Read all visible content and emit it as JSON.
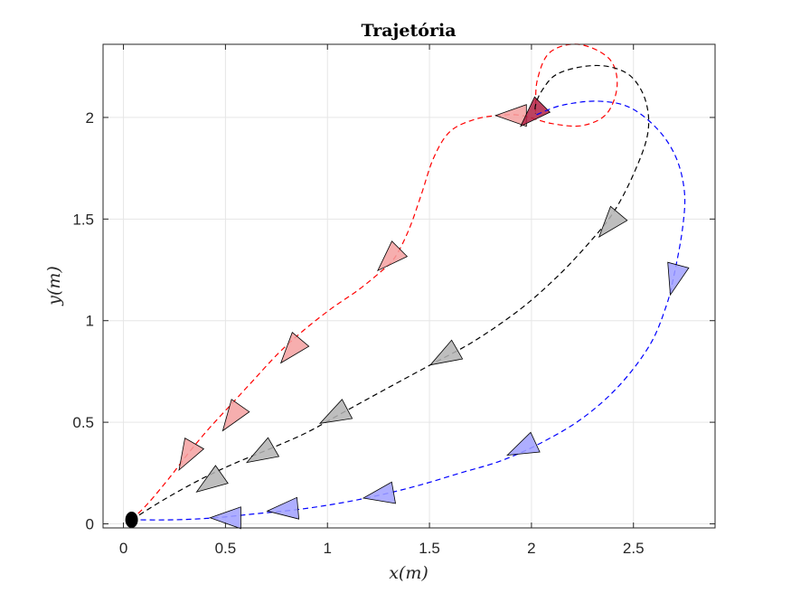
{
  "chart_data": {
    "type": "line",
    "title": "Trajetória",
    "xlabel": "x(m)",
    "ylabel": "y(m)",
    "xlim": [
      -0.1,
      2.9
    ],
    "ylim": [
      -0.02,
      2.36
    ],
    "xticks": [
      0,
      0.5,
      1,
      1.5,
      2,
      2.5
    ],
    "xtick_labels": [
      "0",
      "0.5",
      "1",
      "1.5",
      "2",
      "2.5"
    ],
    "yticks": [
      0,
      0.5,
      1,
      1.5,
      2
    ],
    "ytick_labels": [
      "0",
      "0.5",
      "1",
      "1.5",
      "2"
    ],
    "grid": true,
    "origin": {
      "x": 0.04,
      "y": 0.02,
      "color": "#000000"
    },
    "series": [
      {
        "color": "#ff0000",
        "marker_fill": "#f5a0a0",
        "final_marker_fill": "#b22244",
        "path": [
          [
            0.04,
            0.02
          ],
          [
            0.12,
            0.1
          ],
          [
            0.22,
            0.22
          ],
          [
            0.32,
            0.35
          ],
          [
            0.42,
            0.47
          ],
          [
            0.53,
            0.59
          ],
          [
            0.64,
            0.71
          ],
          [
            0.76,
            0.84
          ],
          [
            0.88,
            0.95
          ],
          [
            1.02,
            1.06
          ],
          [
            1.15,
            1.15
          ],
          [
            1.26,
            1.24
          ],
          [
            1.33,
            1.31
          ],
          [
            1.4,
            1.45
          ],
          [
            1.46,
            1.62
          ],
          [
            1.52,
            1.8
          ],
          [
            1.6,
            1.93
          ],
          [
            1.72,
            1.99
          ],
          [
            1.84,
            2.01
          ],
          [
            1.95,
            2.01
          ],
          [
            2.1,
            1.97
          ],
          [
            2.25,
            1.96
          ],
          [
            2.37,
            2.02
          ],
          [
            2.42,
            2.16
          ],
          [
            2.38,
            2.29
          ],
          [
            2.23,
            2.36
          ],
          [
            2.09,
            2.32
          ],
          [
            2.03,
            2.19
          ],
          [
            2.02,
            2.06
          ],
          [
            2.02,
            2.03
          ]
        ],
        "markers": [
          {
            "x": 0.31,
            "y": 0.33,
            "heading": 60
          },
          {
            "x": 0.53,
            "y": 0.52,
            "heading": 55
          },
          {
            "x": 0.82,
            "y": 0.85,
            "heading": 50
          },
          {
            "x": 1.3,
            "y": 1.3,
            "heading": 45
          },
          {
            "x": 1.9,
            "y": 2.01,
            "heading": 0
          },
          {
            "x": 2.0,
            "y": 2.01,
            "heading": 45,
            "final": true
          }
        ]
      },
      {
        "color": "#000000",
        "marker_fill": "#b3b3b3",
        "path": [
          [
            0.04,
            0.02
          ],
          [
            0.2,
            0.12
          ],
          [
            0.38,
            0.22
          ],
          [
            0.55,
            0.3
          ],
          [
            0.72,
            0.37
          ],
          [
            0.9,
            0.45
          ],
          [
            1.08,
            0.55
          ],
          [
            1.28,
            0.66
          ],
          [
            1.5,
            0.78
          ],
          [
            1.72,
            0.9
          ],
          [
            1.95,
            1.06
          ],
          [
            2.13,
            1.22
          ],
          [
            2.28,
            1.38
          ],
          [
            2.4,
            1.53
          ],
          [
            2.5,
            1.72
          ],
          [
            2.57,
            1.92
          ],
          [
            2.56,
            2.08
          ],
          [
            2.49,
            2.2
          ],
          [
            2.38,
            2.25
          ],
          [
            2.25,
            2.25
          ],
          [
            2.12,
            2.21
          ],
          [
            2.05,
            2.13
          ],
          [
            2.02,
            2.06
          ],
          [
            2.02,
            2.02
          ]
        ],
        "markers": [
          {
            "x": 0.42,
            "y": 0.2,
            "heading": 35
          },
          {
            "x": 0.67,
            "y": 0.34,
            "heading": 30
          },
          {
            "x": 1.03,
            "y": 0.53,
            "heading": 28
          },
          {
            "x": 1.57,
            "y": 0.82,
            "heading": 30
          },
          {
            "x": 2.38,
            "y": 1.47,
            "heading": 50
          }
        ]
      },
      {
        "color": "#0000ff",
        "marker_fill": "#a0a0ff",
        "path": [
          [
            0.04,
            0.02
          ],
          [
            0.25,
            0.02
          ],
          [
            0.45,
            0.03
          ],
          [
            0.65,
            0.05
          ],
          [
            0.85,
            0.07
          ],
          [
            1.05,
            0.1
          ],
          [
            1.25,
            0.14
          ],
          [
            1.45,
            0.19
          ],
          [
            1.65,
            0.25
          ],
          [
            1.85,
            0.31
          ],
          [
            2.05,
            0.4
          ],
          [
            2.25,
            0.52
          ],
          [
            2.43,
            0.68
          ],
          [
            2.58,
            0.88
          ],
          [
            2.66,
            1.07
          ],
          [
            2.7,
            1.23
          ],
          [
            2.74,
            1.45
          ],
          [
            2.75,
            1.63
          ],
          [
            2.71,
            1.8
          ],
          [
            2.62,
            1.94
          ],
          [
            2.48,
            2.05
          ],
          [
            2.32,
            2.08
          ],
          [
            2.15,
            2.06
          ],
          [
            2.04,
            2.02
          ],
          [
            2.02,
            2.01
          ]
        ],
        "markers": [
          {
            "x": 0.5,
            "y": 0.03,
            "heading": 0
          },
          {
            "x": 0.78,
            "y": 0.07,
            "heading": 5
          },
          {
            "x": 1.25,
            "y": 0.14,
            "heading": 10
          },
          {
            "x": 1.95,
            "y": 0.37,
            "heading": 25
          },
          {
            "x": 2.7,
            "y": 1.2,
            "heading": 75
          }
        ]
      }
    ]
  }
}
